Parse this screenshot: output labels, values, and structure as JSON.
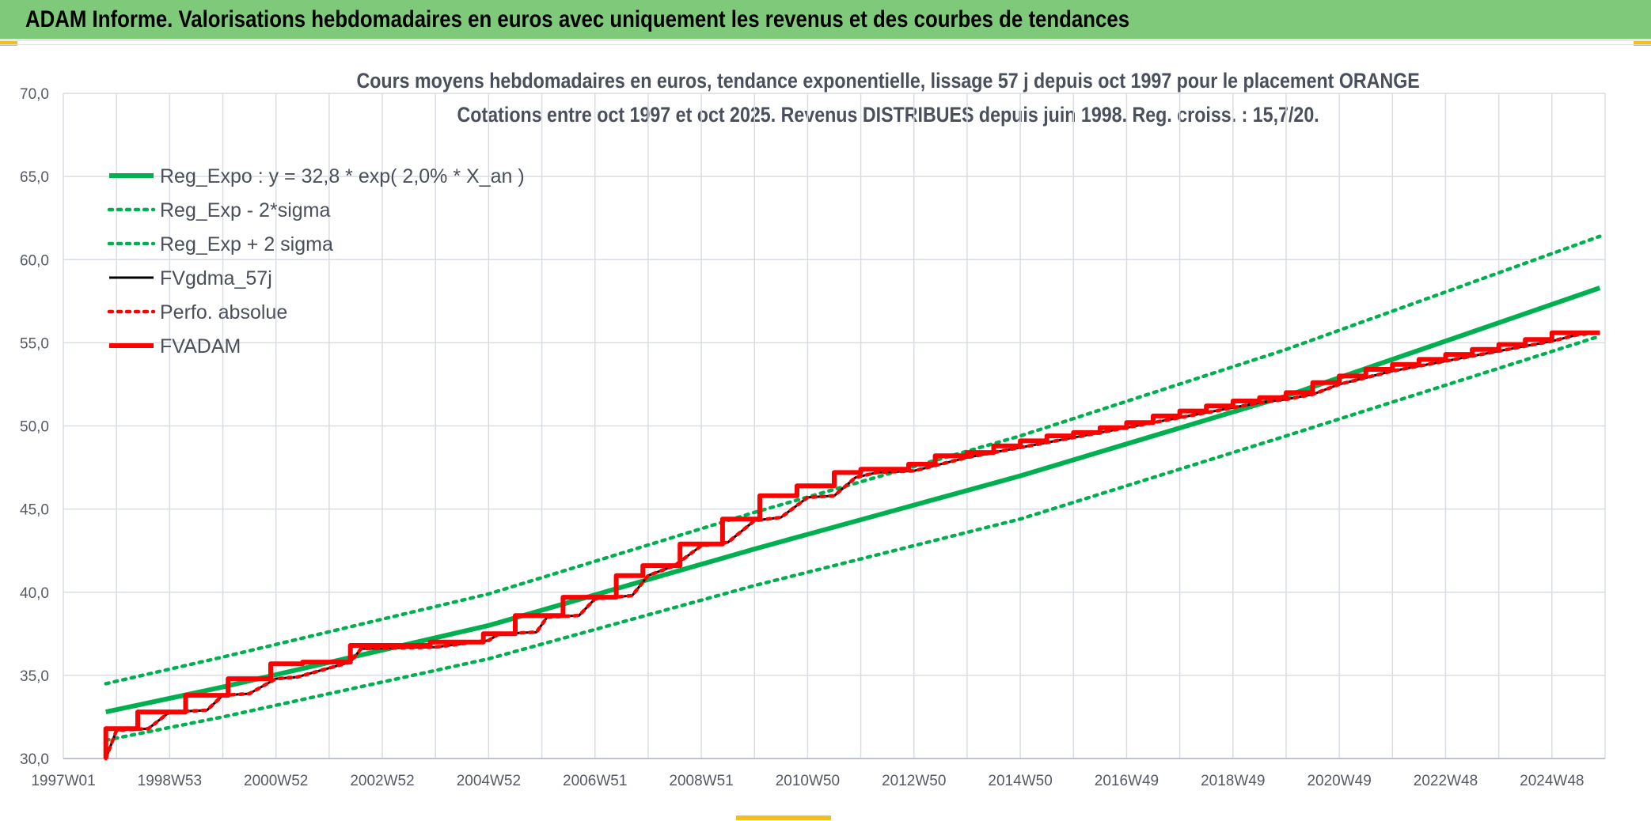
{
  "header": {
    "title": "ADAM Informe. Valorisations hebdomadaires en euros avec uniquement les revenus et des courbes de tendances"
  },
  "colors": {
    "header_bg": "#7fc97a",
    "green": "#00b050",
    "red": "#ff0000",
    "black": "#000000",
    "grid": "#d9dde3"
  },
  "chart_data": {
    "type": "line",
    "title": "Cours moyens hebdomadaires en euros, tendance exponentielle, lissage 57 j depuis oct 1997 pour le placement ORANGE",
    "subtitle": "Cotations entre oct 1997 et oct 2025. Revenus DISTRIBUES depuis juin 1998. Reg. croiss. : 15,7/20.",
    "xlabel": "",
    "ylabel": "",
    "ylim": [
      30,
      70
    ],
    "y_ticks": [
      "70,0",
      "65,0",
      "60,0",
      "55,0",
      "50,0",
      "45,0",
      "40,0",
      "35,0",
      "30,0"
    ],
    "x_ticks": [
      "1997W01",
      "1998W53",
      "2000W52",
      "2002W52",
      "2004W52",
      "2006W51",
      "2008W51",
      "2010W50",
      "2012W50",
      "2014W50",
      "2016W49",
      "2018W49",
      "2020W49",
      "2022W48",
      "2024W48"
    ],
    "xlim": [
      1997.0,
      2026.0
    ],
    "grid": true,
    "legend_position": "top-left",
    "series": [
      {
        "name": "Reg_Expo : y = 32,8 * exp( 2,0% *  X_an )",
        "style": "solid-thick",
        "color": "#00b050",
        "x": [
          1997.8,
          2000,
          2005,
          2010,
          2015,
          2020,
          2025.9
        ],
        "values": [
          32.8,
          34.3,
          38.0,
          42.6,
          47.0,
          51.8,
          58.3
        ]
      },
      {
        "name": "Reg_Exp - 2*sigma",
        "style": "dotted",
        "color": "#00b050",
        "x": [
          1997.8,
          2000,
          2005,
          2010,
          2015,
          2020,
          2025.9
        ],
        "values": [
          31.1,
          32.5,
          36.0,
          40.4,
          44.4,
          49.4,
          55.4
        ]
      },
      {
        "name": "Reg_Exp + 2 sigma",
        "style": "dotted",
        "color": "#00b050",
        "x": [
          1997.8,
          2000,
          2005,
          2010,
          2015,
          2020,
          2025.9
        ],
        "values": [
          34.5,
          36.1,
          39.9,
          44.8,
          49.4,
          54.6,
          61.4
        ]
      },
      {
        "name": "FVgdma_57j",
        "style": "solid",
        "color": "#000000",
        "x": [
          1997.8,
          1998.0,
          1998.6,
          1999.0,
          1999.7,
          2000.0,
          2000.5,
          2001.0,
          2001.4,
          2002.4,
          2002.6,
          2004.0,
          2005.0,
          2005.2,
          2005.9,
          2006.1,
          2006.7,
          2007.0,
          2007.7,
          2008.0,
          2008.5,
          2009.0,
          2009.5,
          2010.0,
          2010.5,
          2011.0,
          2011.5,
          2011.9,
          2012.3,
          2013.0,
          2013.5,
          2014.0,
          2014.5,
          2015.0,
          2015.5,
          2016.0,
          2016.5,
          2017.0,
          2017.5,
          2018.0,
          2018.5,
          2019.0,
          2019.5,
          2020.0,
          2020.5,
          2021.0,
          2021.5,
          2022.0,
          2022.5,
          2023.0,
          2023.5,
          2024.0,
          2024.5,
          2025.0,
          2025.5,
          2025.9
        ],
        "values": [
          30.0,
          31.7,
          31.8,
          32.8,
          32.9,
          33.8,
          33.9,
          34.8,
          34.9,
          35.8,
          36.6,
          36.7,
          37.1,
          37.5,
          37.6,
          38.5,
          38.6,
          39.6,
          39.8,
          41.0,
          41.6,
          42.8,
          43.0,
          44.3,
          44.5,
          45.7,
          45.8,
          46.9,
          47.2,
          47.3,
          47.7,
          48.1,
          48.4,
          48.7,
          49.0,
          49.3,
          49.6,
          49.9,
          50.2,
          50.5,
          50.8,
          51.1,
          51.4,
          51.6,
          51.9,
          52.5,
          52.9,
          53.3,
          53.6,
          53.9,
          54.2,
          54.5,
          54.8,
          55.1,
          55.5,
          55.6
        ]
      },
      {
        "name": "Perfo. absolue",
        "style": "dotted",
        "color": "#ff0000",
        "x": [
          1997.8,
          1998.0,
          1998.6,
          1999.0,
          1999.7,
          2000.0,
          2000.5,
          2001.0,
          2001.4,
          2002.4,
          2002.6,
          2004.0,
          2005.0,
          2005.2,
          2005.9,
          2006.1,
          2006.7,
          2007.0,
          2007.7,
          2008.0,
          2008.5,
          2009.0,
          2009.5,
          2010.0,
          2010.5,
          2011.0,
          2011.5,
          2011.9,
          2012.3,
          2013.0,
          2013.5,
          2014.0,
          2014.5,
          2015.0,
          2015.5,
          2016.0,
          2016.5,
          2017.0,
          2017.5,
          2018.0,
          2018.5,
          2019.0,
          2019.5,
          2020.0,
          2020.5,
          2021.0,
          2021.5,
          2022.0,
          2022.5,
          2023.0,
          2023.5,
          2024.0,
          2024.5,
          2025.0,
          2025.5,
          2025.9
        ],
        "values": [
          30.0,
          31.7,
          31.8,
          32.8,
          32.9,
          33.8,
          33.9,
          34.8,
          34.9,
          35.8,
          36.6,
          36.7,
          37.1,
          37.5,
          37.6,
          38.5,
          38.6,
          39.6,
          39.8,
          41.0,
          41.6,
          42.8,
          43.0,
          44.3,
          44.5,
          45.7,
          45.8,
          46.9,
          47.2,
          47.3,
          47.7,
          48.1,
          48.4,
          48.7,
          49.0,
          49.3,
          49.6,
          49.9,
          50.2,
          50.5,
          50.8,
          51.1,
          51.4,
          51.6,
          51.9,
          52.5,
          52.9,
          53.3,
          53.6,
          53.9,
          54.2,
          54.5,
          54.8,
          55.1,
          55.5,
          55.6
        ]
      },
      {
        "name": "FVADAM",
        "style": "solid-thick",
        "color": "#ff0000",
        "x": [
          1997.8,
          1997.8,
          1998.4,
          1998.4,
          1999.3,
          1999.3,
          2000.1,
          2000.1,
          2000.9,
          2000.9,
          2001.5,
          2001.5,
          2002.4,
          2002.4,
          2003.9,
          2003.9,
          2004.9,
          2004.9,
          2005.5,
          2005.5,
          2006.4,
          2006.4,
          2007.4,
          2007.4,
          2007.9,
          2007.9,
          2008.6,
          2008.6,
          2009.4,
          2009.4,
          2010.1,
          2010.1,
          2010.8,
          2010.8,
          2011.5,
          2011.5,
          2012.0,
          2012.0,
          2012.9,
          2012.9,
          2013.4,
          2013.4,
          2014.0,
          2014.0,
          2014.5,
          2014.5,
          2015.0,
          2015.0,
          2015.5,
          2015.5,
          2016.0,
          2016.0,
          2016.5,
          2016.5,
          2017.0,
          2017.0,
          2017.5,
          2017.5,
          2018.0,
          2018.0,
          2018.5,
          2018.5,
          2019.0,
          2019.0,
          2019.5,
          2019.5,
          2020.0,
          2020.0,
          2020.5,
          2020.5,
          2021.0,
          2021.0,
          2021.5,
          2021.5,
          2022.0,
          2022.0,
          2022.5,
          2022.5,
          2023.0,
          2023.0,
          2023.5,
          2023.5,
          2024.0,
          2024.0,
          2024.5,
          2024.5,
          2025.0,
          2025.0,
          2025.5,
          2025.9
        ],
        "values": [
          30.0,
          31.8,
          31.8,
          32.8,
          32.8,
          33.8,
          33.8,
          34.8,
          34.8,
          35.7,
          35.7,
          35.8,
          35.8,
          36.8,
          36.8,
          37.0,
          37.0,
          37.5,
          37.5,
          38.6,
          38.6,
          39.7,
          39.7,
          41.0,
          41.0,
          41.6,
          41.6,
          42.9,
          42.9,
          44.4,
          44.4,
          45.8,
          45.8,
          46.4,
          46.4,
          47.2,
          47.2,
          47.4,
          47.4,
          47.7,
          47.7,
          48.2,
          48.2,
          48.4,
          48.4,
          48.8,
          48.8,
          49.1,
          49.1,
          49.4,
          49.4,
          49.6,
          49.6,
          49.9,
          49.9,
          50.2,
          50.2,
          50.6,
          50.6,
          50.9,
          50.9,
          51.2,
          51.2,
          51.5,
          51.5,
          51.7,
          51.7,
          52.0,
          52.0,
          52.6,
          52.6,
          53.0,
          53.0,
          53.4,
          53.4,
          53.7,
          53.7,
          54.0,
          54.0,
          54.3,
          54.3,
          54.6,
          54.6,
          54.9,
          54.9,
          55.2,
          55.2,
          55.6,
          55.6,
          55.6
        ]
      }
    ]
  }
}
